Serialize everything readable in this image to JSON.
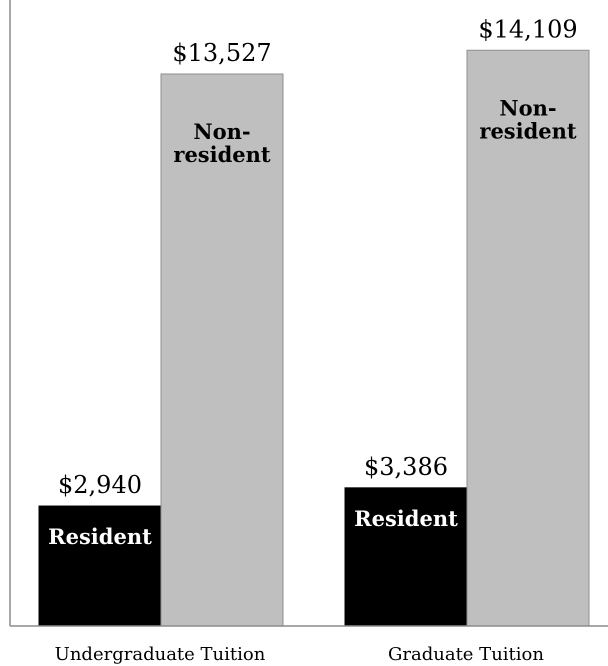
{
  "chart_data": {
    "type": "bar",
    "title": "",
    "xlabel": "",
    "ylabel": "",
    "categories": [
      "Undergraduate Tuition",
      "Graduate Tuition"
    ],
    "series": [
      {
        "name": "Resident",
        "values": [
          2940,
          3386
        ],
        "value_labels": [
          "$2,940",
          "$3,386"
        ],
        "bar_label": [
          "Resident"
        ],
        "color": "#000000",
        "label_color": "#ffffff"
      },
      {
        "name": "Non-resident",
        "values": [
          13527,
          14109
        ],
        "value_labels": [
          "$13,527",
          "$14,109"
        ],
        "bar_label": [
          "Non-",
          "resident"
        ],
        "color": "#bfbfbf",
        "label_color": "#000000"
      }
    ],
    "ylim": [
      0,
      16000
    ],
    "grid": false,
    "legend": "none"
  },
  "colors": {
    "axis": "#8c8c8c",
    "background": "#ffffff"
  }
}
